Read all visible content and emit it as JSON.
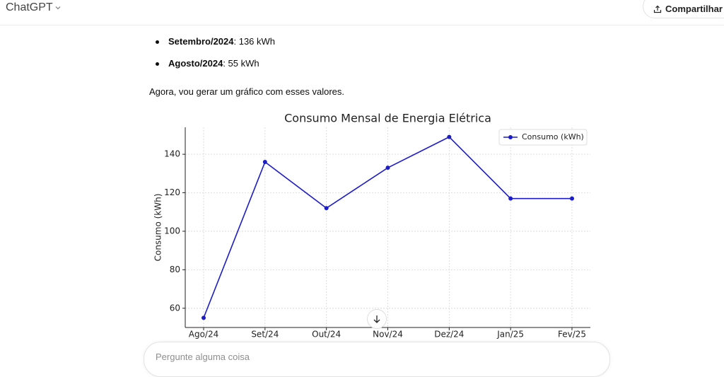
{
  "header": {
    "title": "ChatGPT",
    "share": "Compartilhar"
  },
  "message": {
    "list": [
      {
        "label": "Setembro/2024",
        "text": ": 136 kWh"
      },
      {
        "label": "Agosto/2024",
        "text": ": 55 kWh"
      }
    ],
    "paragraph": "Agora, vou gerar um gráfico com esses valores."
  },
  "chart_data": {
    "type": "line",
    "title": "Consumo Mensal de Energia Elétrica",
    "y_label": "Consumo (kWh)",
    "categories": [
      "Ago/24",
      "Set/24",
      "Out/24",
      "Nov/24",
      "Dez/24",
      "Jan/25",
      "Fev/25"
    ],
    "series": [
      {
        "name": "Consumo (kWh)",
        "color": "#1c1cc8",
        "values": [
          55,
          136,
          112,
          133,
          149,
          117,
          117
        ]
      }
    ],
    "ylim": [
      50,
      154
    ],
    "yticks": [
      60,
      80,
      100,
      120,
      140
    ],
    "grid": true,
    "legend": "upper right"
  },
  "composer": {
    "placeholder": "Pergunte alguma coisa"
  }
}
